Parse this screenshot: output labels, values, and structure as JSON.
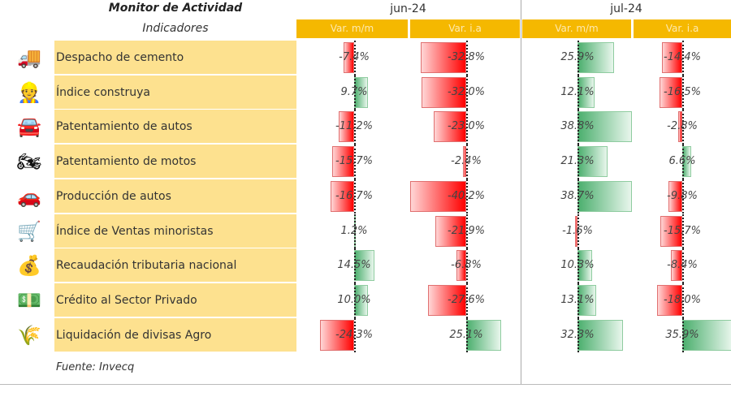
{
  "chart_data": {
    "type": "table",
    "title": "Monitor de Actividad",
    "row_header": "Indicadores",
    "months": [
      "jun-24",
      "jul-24"
    ],
    "column_headers": [
      "Var. m/m",
      "Var. i.a",
      "Var. m/m",
      "Var. i.a"
    ],
    "rows": [
      {
        "label": "Despacho de cemento",
        "icon": "cement-truck-icon",
        "values": [
          -7.4,
          -32.8,
          25.9,
          -14.4
        ]
      },
      {
        "label": "Índice construya",
        "icon": "construction-worker-icon",
        "values": [
          9.7,
          -32.0,
          12.1,
          -16.5
        ]
      },
      {
        "label": "Patentamiento de autos",
        "icon": "car-front-icon",
        "values": [
          -11.2,
          -23.0,
          38.8,
          -2.8
        ]
      },
      {
        "label": "Patentamiento de motos",
        "icon": "motorcycle-icon",
        "values": [
          -15.7,
          -2.4,
          21.3,
          6.6
        ]
      },
      {
        "label": "Producción de autos",
        "icon": "car-icon",
        "values": [
          -16.7,
          -40.2,
          38.7,
          -9.8
        ]
      },
      {
        "label": "Índice de Ventas minoristas",
        "icon": "shopping-cart-icon",
        "values": [
          1.2,
          -21.9,
          -1.6,
          -15.7
        ]
      },
      {
        "label": "Recaudación tributaria nacional",
        "icon": "money-hand-icon",
        "values": [
          14.5,
          -6.8,
          10.3,
          -8.4
        ]
      },
      {
        "label": "Crédito al Sector Privado",
        "icon": "cash-coins-icon",
        "values": [
          10.0,
          -27.6,
          13.1,
          -18.0
        ]
      },
      {
        "label": "Liquidación de divisas Agro",
        "icon": "wheat-icon",
        "values": [
          -24.3,
          25.1,
          32.3,
          35.9
        ]
      }
    ],
    "source": "Fuente: Invecq",
    "colors": {
      "negative": "#ff0000",
      "positive": "#4caf6e",
      "header": "#f5b800",
      "label_bg": "#fde18f"
    }
  }
}
